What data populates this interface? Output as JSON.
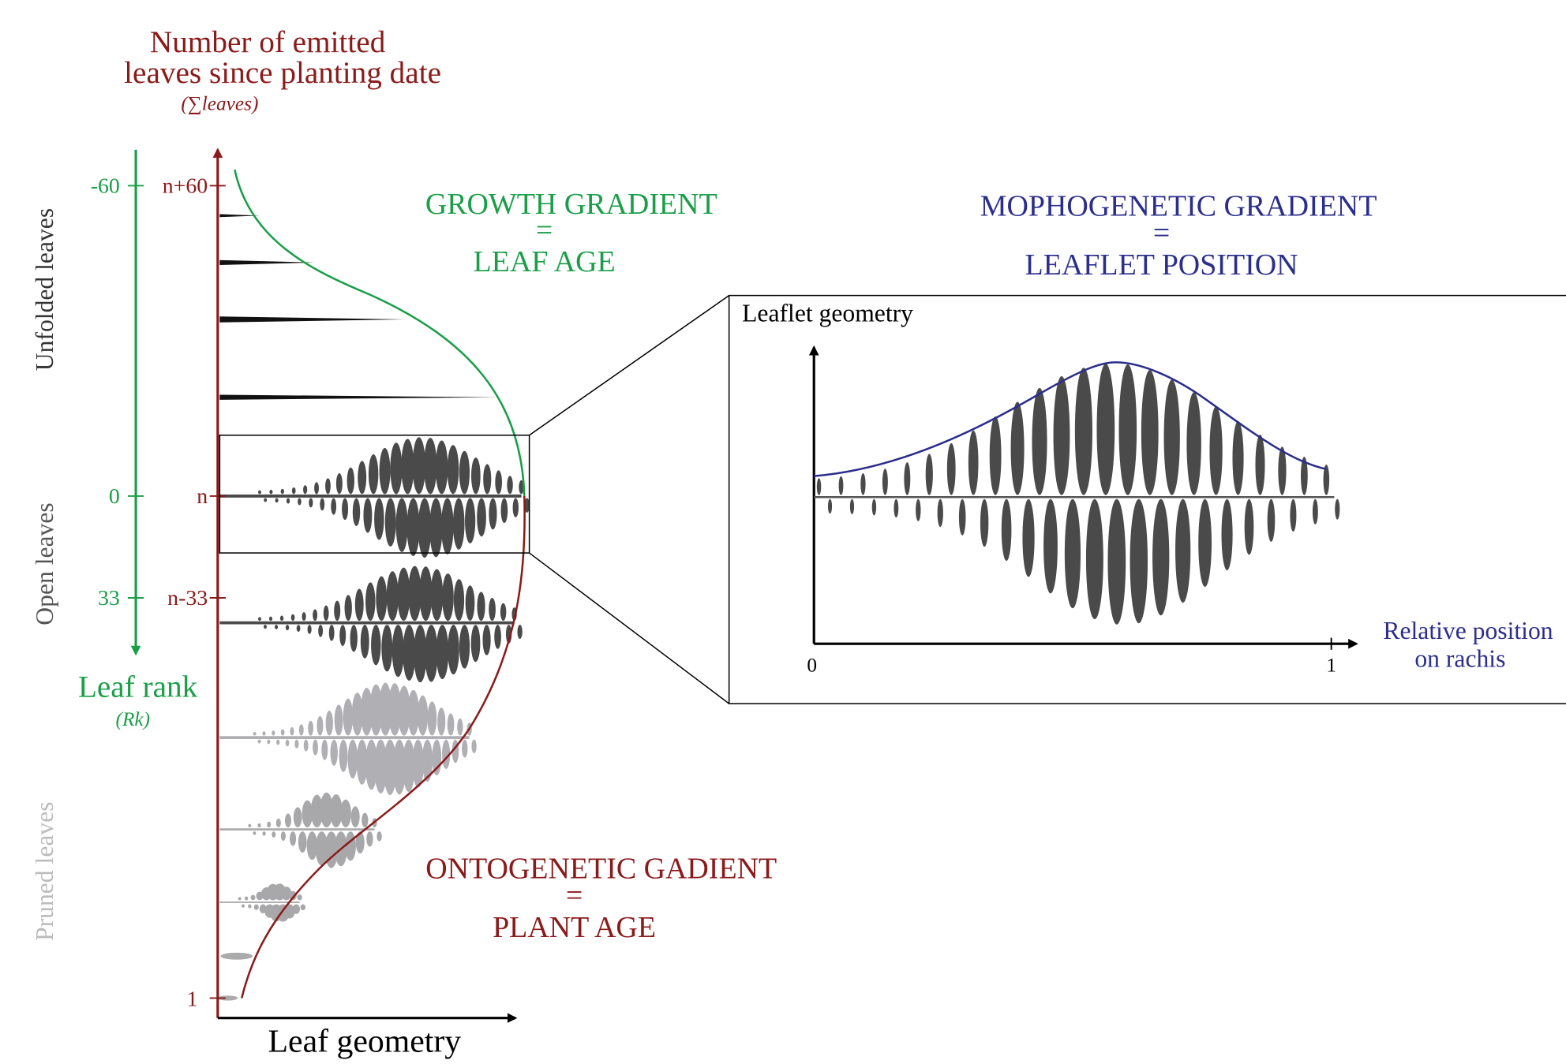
{
  "left_axis": {
    "title_lines": [
      "Number of emitted",
      "leaves since planting date"
    ],
    "subtitle": "(∑leaves)",
    "ticks": [
      "n+60",
      "n",
      "n-33",
      "1"
    ],
    "x_label": "Leaf geometry"
  },
  "rank_axis": {
    "ticks": [
      "-60",
      "0",
      "33"
    ],
    "label": "Leaf rank",
    "sublabel": "(Rk)"
  },
  "groups": [
    "Unfolded leaves",
    "Open leaves",
    "Pruned leaves"
  ],
  "growth": {
    "lines": [
      "GROWTH GRADIENT",
      "=",
      "LEAF AGE"
    ]
  },
  "morpho": {
    "lines": [
      "MOPHOGENETIC GRADIENT",
      "=",
      "LEAFLET POSITION"
    ]
  },
  "onto": {
    "lines": [
      "ONTOGENETIC GADIENT",
      "=",
      "PLANT AGE"
    ]
  },
  "inset": {
    "y_label": "Leaflet geometry",
    "x_ticks": [
      "0",
      "1"
    ],
    "x_label_lines": [
      "Relative position",
      "on rachis"
    ]
  }
}
